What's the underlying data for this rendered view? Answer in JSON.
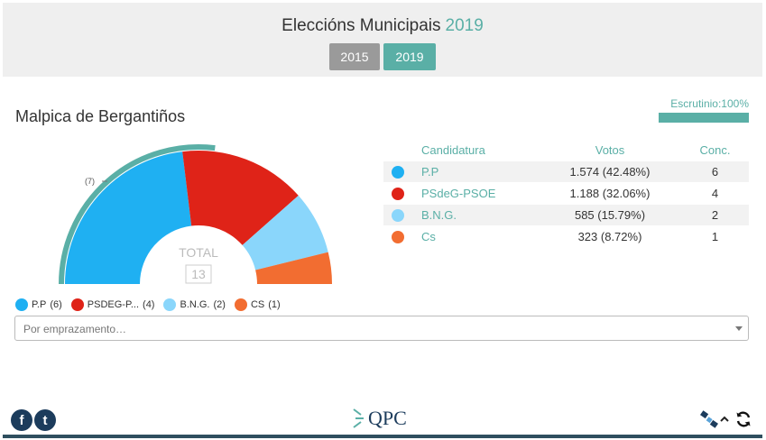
{
  "header": {
    "title": "Eleccións Municipais",
    "year": "2019",
    "years": [
      "2015",
      "2019"
    ]
  },
  "scrutiny": {
    "label": "Escrutinio:100%",
    "percent": 100
  },
  "municipality": "Malpica de Bergantiños",
  "chart": {
    "total_label": "TOTAL",
    "total_value": "13",
    "majority_label": "(7)"
  },
  "table": {
    "headers": {
      "name": "Candidatura",
      "votes": "Votos",
      "seats": "Conc."
    },
    "rows": [
      {
        "name": "P.P",
        "votes": "1.574 (42.48%)",
        "seats": "6",
        "color": "#1fb0f2"
      },
      {
        "name": "PSdeG-PSOE",
        "votes": "1.188 (32.06%)",
        "seats": "4",
        "color": "#df2318"
      },
      {
        "name": "B.N.G.",
        "votes": "585 (15.79%)",
        "seats": "2",
        "color": "#8ad6fb"
      },
      {
        "name": "Cs",
        "votes": "323 (8.72%)",
        "seats": "1",
        "color": "#f26d31"
      }
    ]
  },
  "legend": [
    {
      "label": "P.P",
      "seats": "(6)",
      "color": "#1fb0f2"
    },
    {
      "label": "PSDEG-P...",
      "seats": "(4)",
      "color": "#df2318"
    },
    {
      "label": "B.N.G.",
      "seats": "(2)",
      "color": "#8ad6fb"
    },
    {
      "label": "CS",
      "seats": "(1)",
      "color": "#f26d31"
    }
  ],
  "place_select": {
    "placeholder": "Por emprazamento…"
  },
  "footer": {
    "social": [
      {
        "icon": "facebook-icon",
        "glyph": "f"
      },
      {
        "icon": "twitter-icon",
        "glyph": "t"
      }
    ],
    "logo_text": "QPC"
  },
  "colors": {
    "accent": "#5aafa6",
    "brand_dark": "#1c3c5c"
  }
}
